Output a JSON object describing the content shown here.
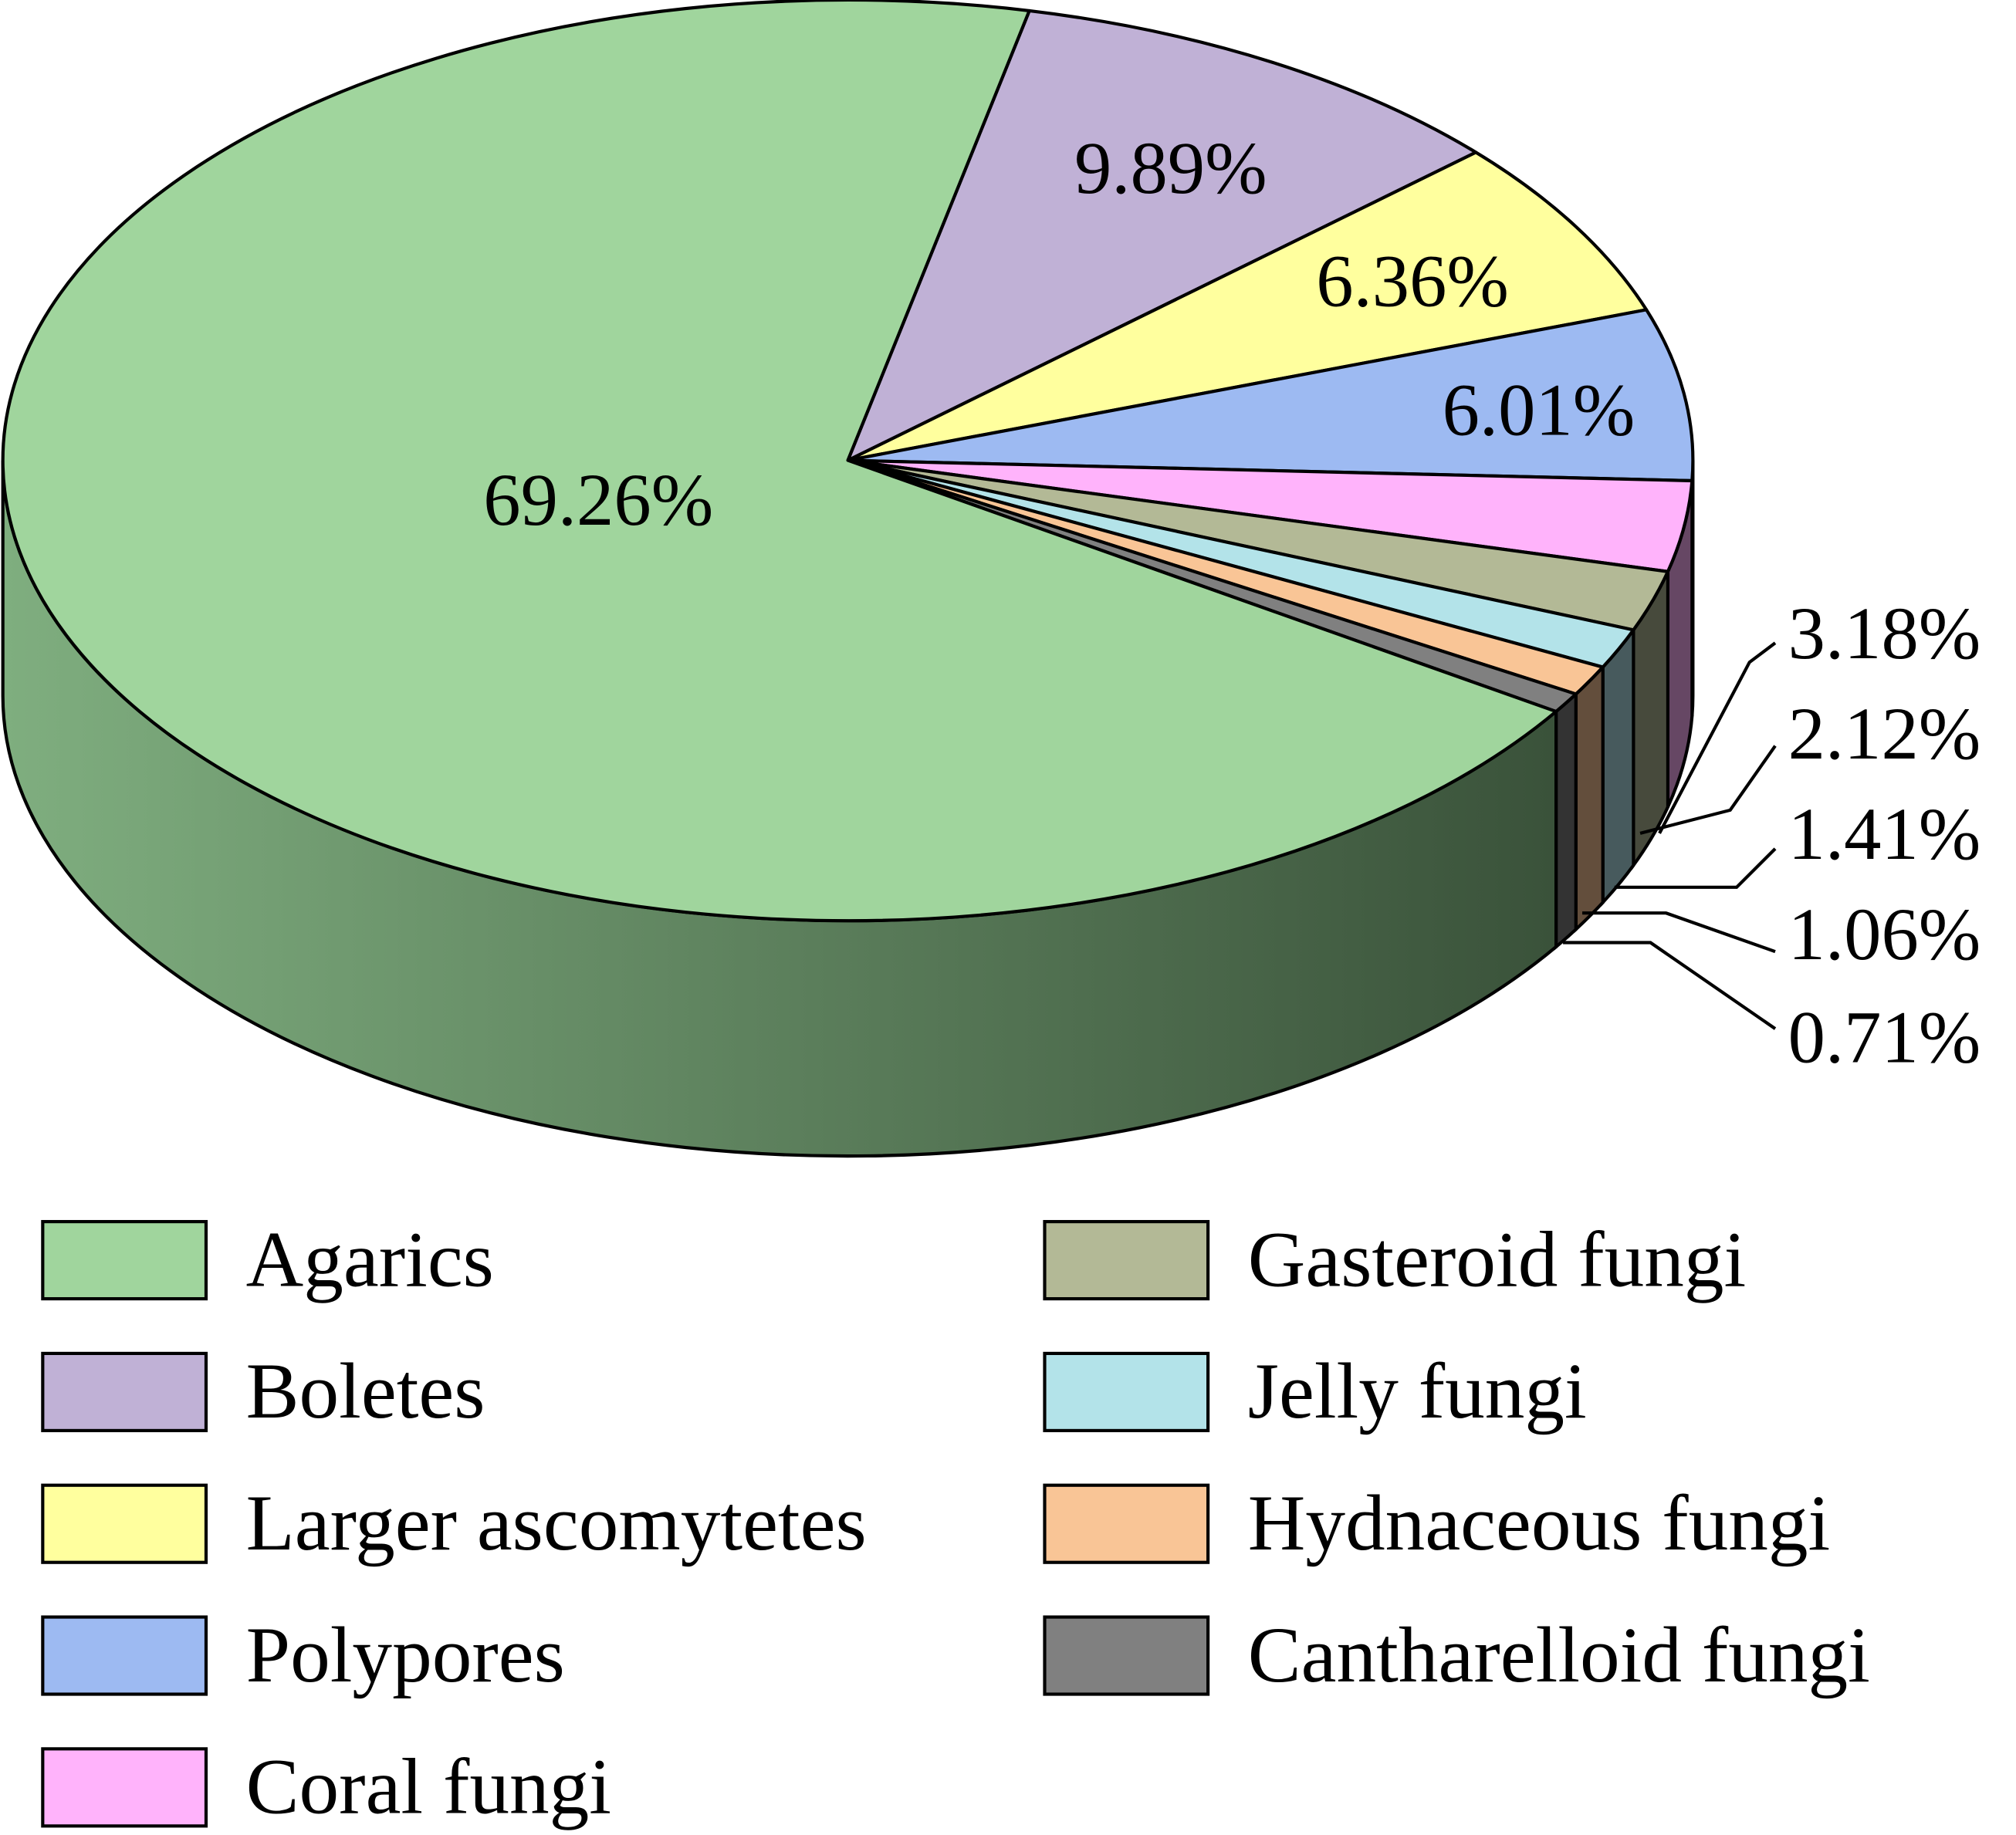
{
  "chart_data": {
    "type": "pie",
    "style": "3d",
    "title": "",
    "categories": [
      "Boletes",
      "Larger ascomytetes",
      "Polypores",
      "Coral fungi",
      "Gasteroid fungi",
      "Jelly fungi",
      "Hydnaceous fungi",
      "Cantharelloid fungi",
      "Agarics"
    ],
    "values": [
      9.89,
      6.36,
      6.01,
      3.18,
      2.12,
      1.41,
      1.06,
      0.71,
      69.26
    ],
    "labels": [
      "9.89%",
      "6.36%",
      "6.01%",
      "3.18%",
      "2.12%",
      "1.41%",
      "1.06%",
      "0.71%",
      "69.26%"
    ],
    "colors": [
      "#c0b1d6",
      "#ffff9e",
      "#9dbaf2",
      "#ffb3fb",
      "#b3b996",
      "#b3e3e9",
      "#f9c596",
      "#808080",
      "#a0d59d"
    ],
    "legend": {
      "placement": "bottom",
      "items": [
        {
          "label": "Agarics",
          "color": "#a0d59d"
        },
        {
          "label": "Boletes",
          "color": "#c0b1d6"
        },
        {
          "label": "Larger ascomytetes",
          "color": "#ffff9e"
        },
        {
          "label": "Polypores",
          "color": "#9dbaf2"
        },
        {
          "label": "Coral fungi",
          "color": "#ffb3fb"
        },
        {
          "label": "Gasteroid fungi",
          "color": "#b3b996"
        },
        {
          "label": "Jelly fungi",
          "color": "#b3e3e9"
        },
        {
          "label": "Hydnaceous fungi",
          "color": "#f9c596"
        },
        {
          "label": "Cantharelloid fungi",
          "color": "#808080"
        }
      ]
    }
  }
}
